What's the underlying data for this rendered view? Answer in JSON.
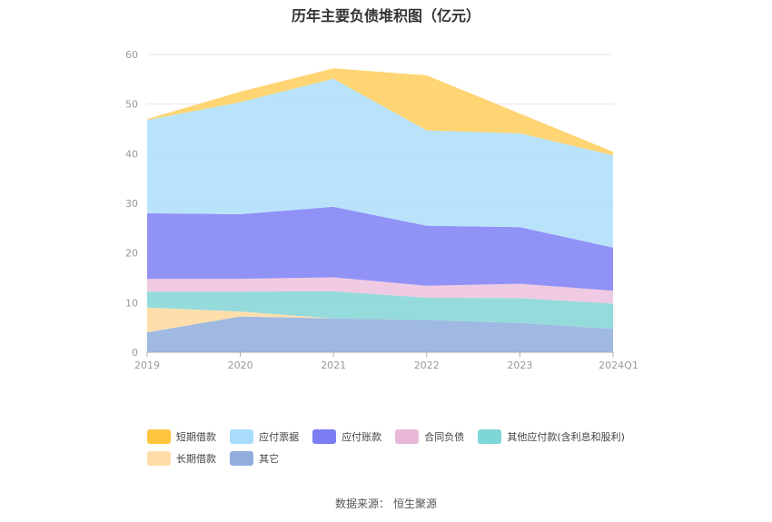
{
  "chart_data": {
    "type": "area",
    "stacked": true,
    "title": "历年主要负债堆积图（亿元）",
    "categories": [
      "2019",
      "2020",
      "2021",
      "2022",
      "2023",
      "2024Q1"
    ],
    "ylim": [
      0,
      60
    ],
    "yticks": [
      0,
      10,
      20,
      30,
      40,
      50,
      60
    ],
    "grid": true,
    "legend_position": "bottom",
    "series": [
      {
        "name": "其它",
        "color": "#9ab5e0",
        "values": [
          4.0,
          7.2,
          6.8,
          6.5,
          5.9,
          4.7
        ]
      },
      {
        "name": "长期借款",
        "color": "#ffdca8",
        "values": [
          5.0,
          1.0,
          0.0,
          0.0,
          0.0,
          0.0
        ]
      },
      {
        "name": "其他应付款(含利息和股利)",
        "color": "#8fd9d9",
        "values": [
          3.2,
          4.0,
          5.5,
          4.5,
          5.0,
          5.1
        ]
      },
      {
        "name": "合同负债",
        "color": "#efc7e0",
        "values": [
          2.6,
          2.6,
          2.8,
          2.4,
          2.9,
          2.6
        ]
      },
      {
        "name": "应付账款",
        "color": "#8a8cf5",
        "values": [
          13.2,
          13.0,
          14.2,
          12.1,
          11.4,
          8.7
        ]
      },
      {
        "name": "应付票据",
        "color": "#b5e2fb",
        "values": [
          18.8,
          22.6,
          25.8,
          19.2,
          18.9,
          18.6
        ]
      },
      {
        "name": "短期借款",
        "color": "#ffd36b",
        "values": [
          0.2,
          2.1,
          2.1,
          11.1,
          4.0,
          0.7
        ]
      }
    ]
  },
  "legend": [
    {
      "label": "短期借款",
      "color": "#ffc53d"
    },
    {
      "label": "应付票据",
      "color": "#a8dcfa"
    },
    {
      "label": "应付账款",
      "color": "#7b7ef2"
    },
    {
      "label": "合同负债",
      "color": "#e9b8d8"
    },
    {
      "label": "其他应付款(含利息和股利)",
      "color": "#7fd6d6"
    },
    {
      "label": "长期借款",
      "color": "#ffdca8"
    },
    {
      "label": "其它",
      "color": "#92acdc"
    }
  ],
  "source": {
    "label": "数据来源：",
    "name": "恒生聚源"
  }
}
